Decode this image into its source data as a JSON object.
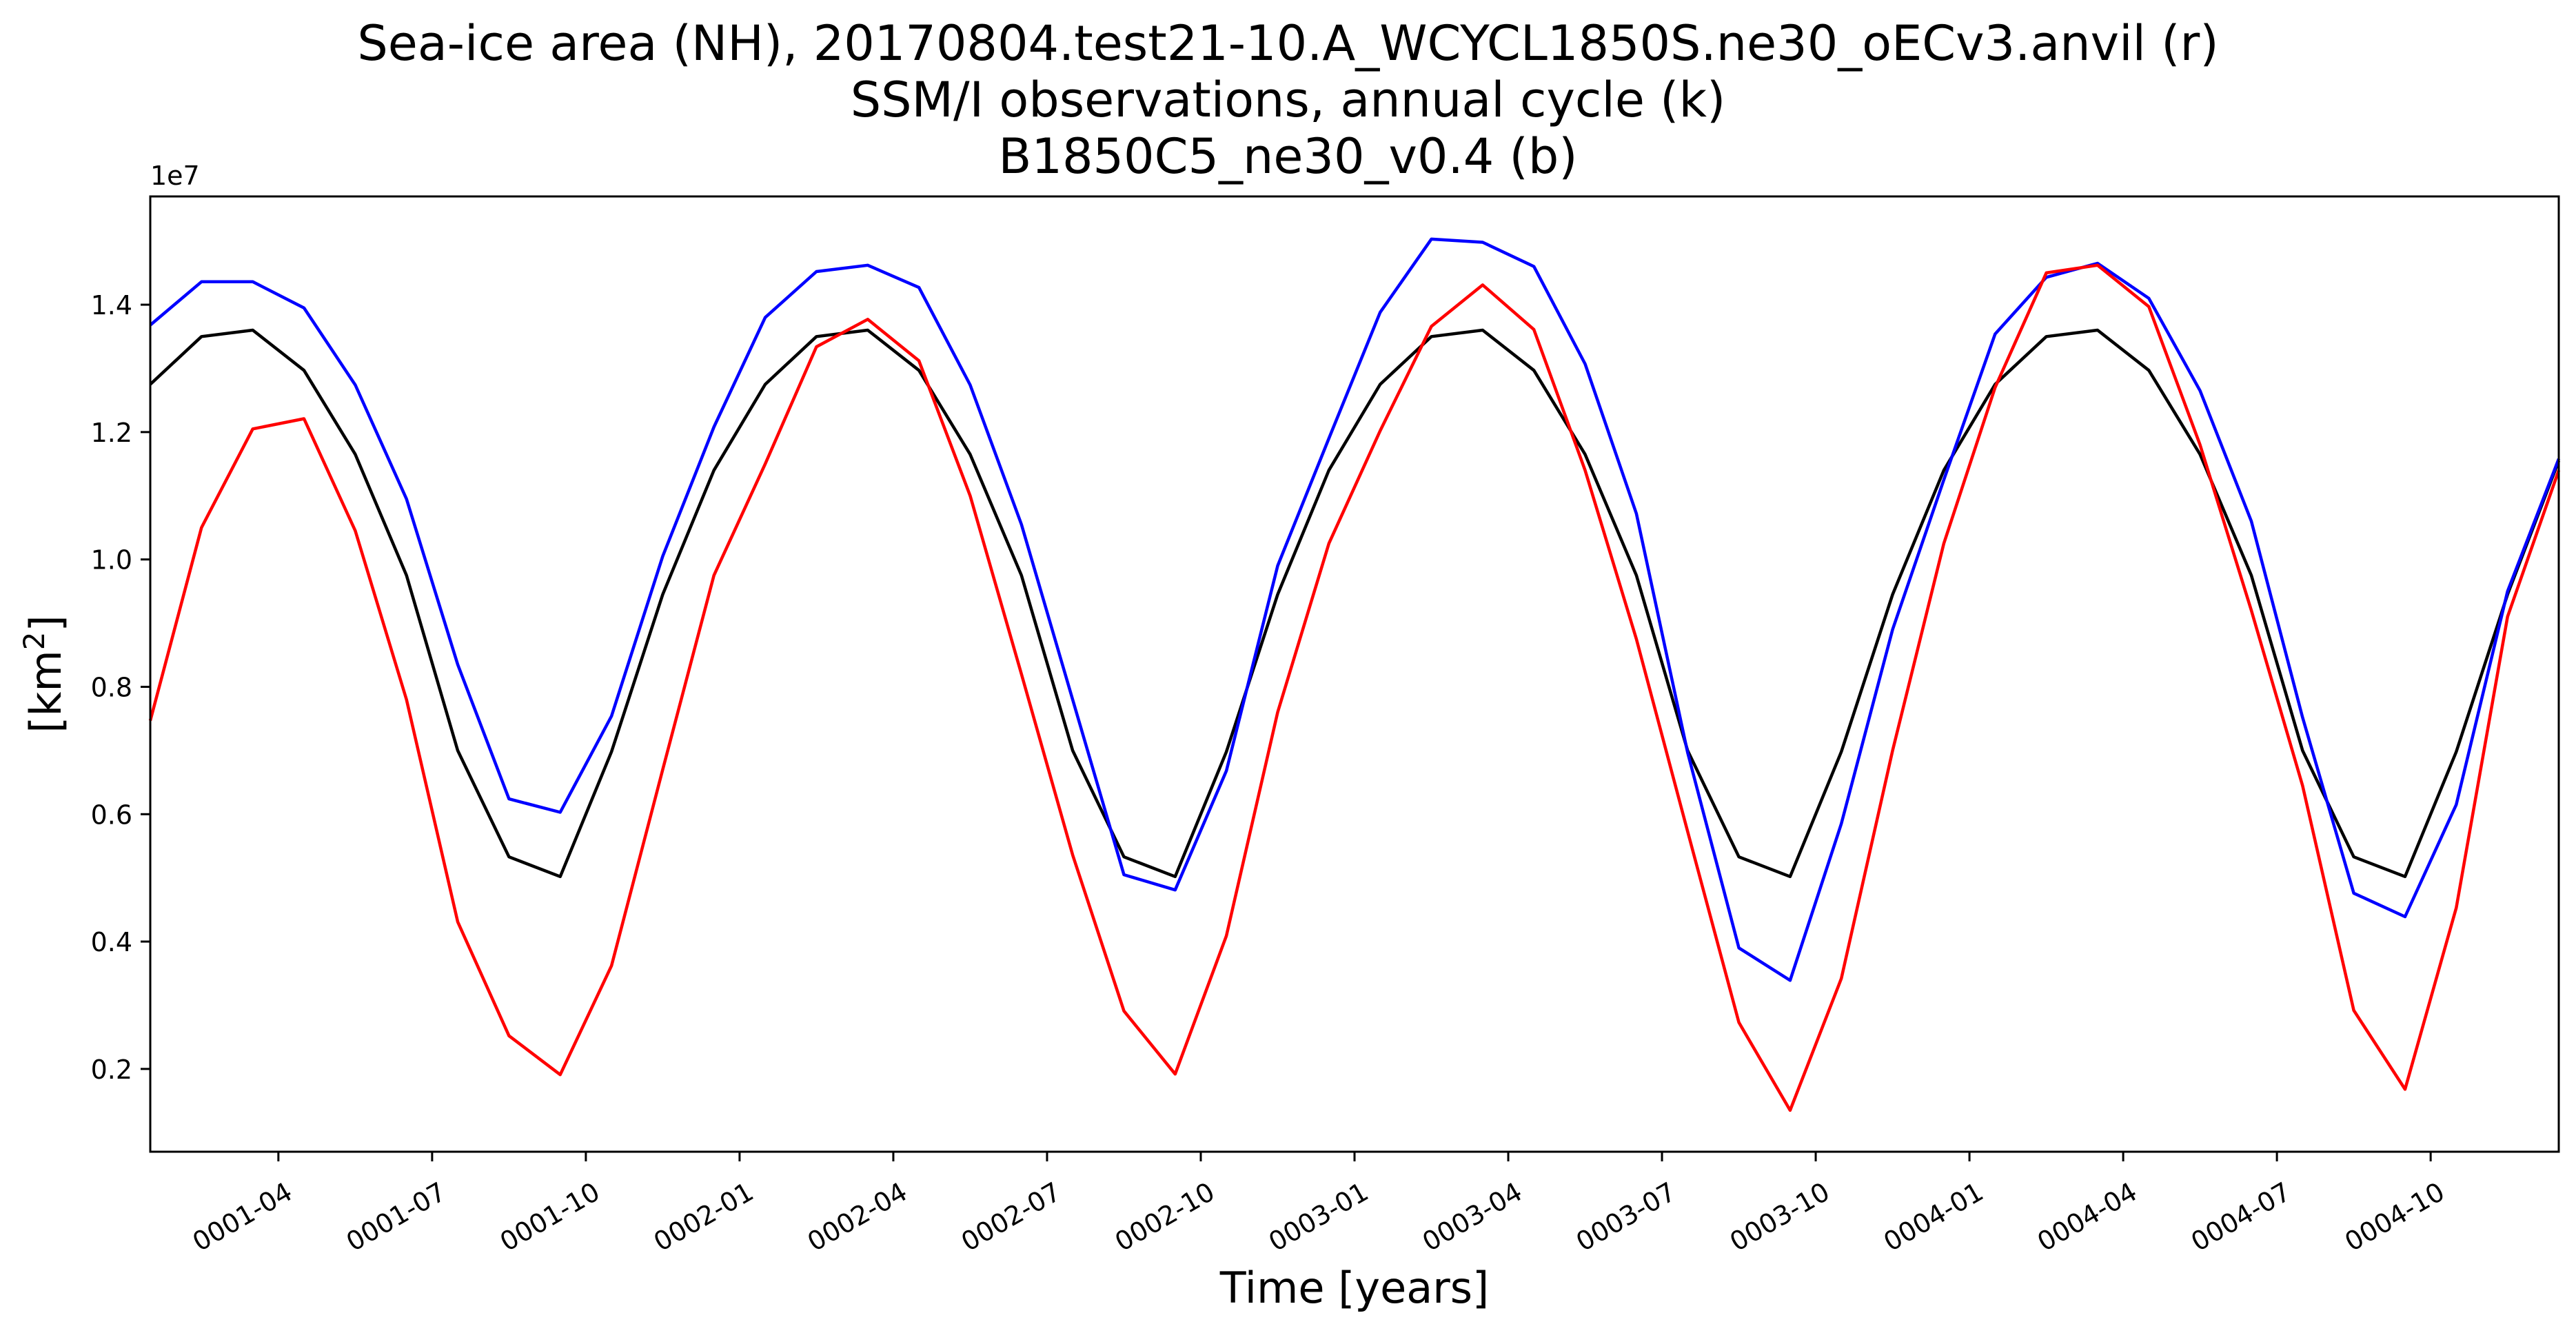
{
  "chart_data": {
    "type": "line",
    "title_lines": [
      "Sea-ice area (NH), 20170804.test21-10.A_WCYCL1850S.ne30_oECv3.anvil (r)",
      "SSM/I observations, annual cycle (k)",
      "B1850C5_ne30_v0.4 (b)"
    ],
    "xlabel": "Time [years]",
    "ylabel": "[km",
    "ylabel_sup": "2",
    "ylabel_end": "]",
    "y_offset_label": "1e7",
    "x_range_months": [
      "0001-01-16",
      "0004-12-16"
    ],
    "ylim": [
      700000,
      15700000
    ],
    "yticks": [
      2000000,
      4000000,
      6000000,
      8000000,
      10000000,
      12000000,
      14000000
    ],
    "ytick_labels": [
      "0.2",
      "0.4",
      "0.6",
      "0.8",
      "1.0",
      "1.2",
      "1.4"
    ],
    "xticks": [
      "0001-04",
      "0001-07",
      "0001-10",
      "0002-01",
      "0002-04",
      "0002-07",
      "0002-10",
      "0003-01",
      "0003-04",
      "0003-07",
      "0003-10",
      "0004-01",
      "0004-04",
      "0004-07",
      "0004-10"
    ],
    "grid": false,
    "legend": false,
    "series": [
      {
        "key": "obs",
        "color": "#000000",
        "values": [
          12750000,
          13500000,
          13600000,
          12970000,
          11650000,
          9750000,
          7000000,
          5330000,
          5020000,
          6980000,
          9450000,
          11400000,
          12750000,
          13500000,
          13600000,
          12970000,
          11650000,
          9750000,
          7000000,
          5330000,
          5020000,
          6980000,
          9450000,
          11400000,
          12750000,
          13500000,
          13600000,
          12970000,
          11650000,
          9750000,
          7000000,
          5330000,
          5020000,
          6980000,
          9450000,
          11400000,
          12750000,
          13500000,
          13600000,
          12970000,
          11650000,
          9750000,
          7000000,
          5330000,
          5020000,
          6980000,
          9450000,
          11550000
        ]
      },
      {
        "key": "b",
        "color": "#0000ff",
        "values": [
          13680000,
          14360000,
          14360000,
          13950000,
          12740000,
          10950000,
          8350000,
          6240000,
          6030000,
          7540000,
          10050000,
          12080000,
          13800000,
          14520000,
          14620000,
          14270000,
          12740000,
          10550000,
          7800000,
          5050000,
          4810000,
          6680000,
          9900000,
          11900000,
          13880000,
          15030000,
          14980000,
          14600000,
          13070000,
          10720000,
          6970000,
          3900000,
          3390000,
          5850000,
          8900000,
          11250000,
          13540000,
          14430000,
          14650000,
          14100000,
          12650000,
          10600000,
          7520000,
          4760000,
          4390000,
          6150000,
          9500000,
          11580000
        ]
      },
      {
        "key": "r",
        "color": "#ff0000",
        "values": [
          7470000,
          10500000,
          12050000,
          12210000,
          10450000,
          7800000,
          4310000,
          2520000,
          1910000,
          3620000,
          6700000,
          9750000,
          11500000,
          13340000,
          13770000,
          13120000,
          11000000,
          8200000,
          5360000,
          2910000,
          1920000,
          4090000,
          7600000,
          10250000,
          12020000,
          13660000,
          14310000,
          13610000,
          11400000,
          8750000,
          5730000,
          2730000,
          1350000,
          3420000,
          7000000,
          10250000,
          12700000,
          14500000,
          14620000,
          13970000,
          11800000,
          9200000,
          6450000,
          2920000,
          1680000,
          4530000,
          9100000,
          11400000
        ]
      }
    ]
  }
}
